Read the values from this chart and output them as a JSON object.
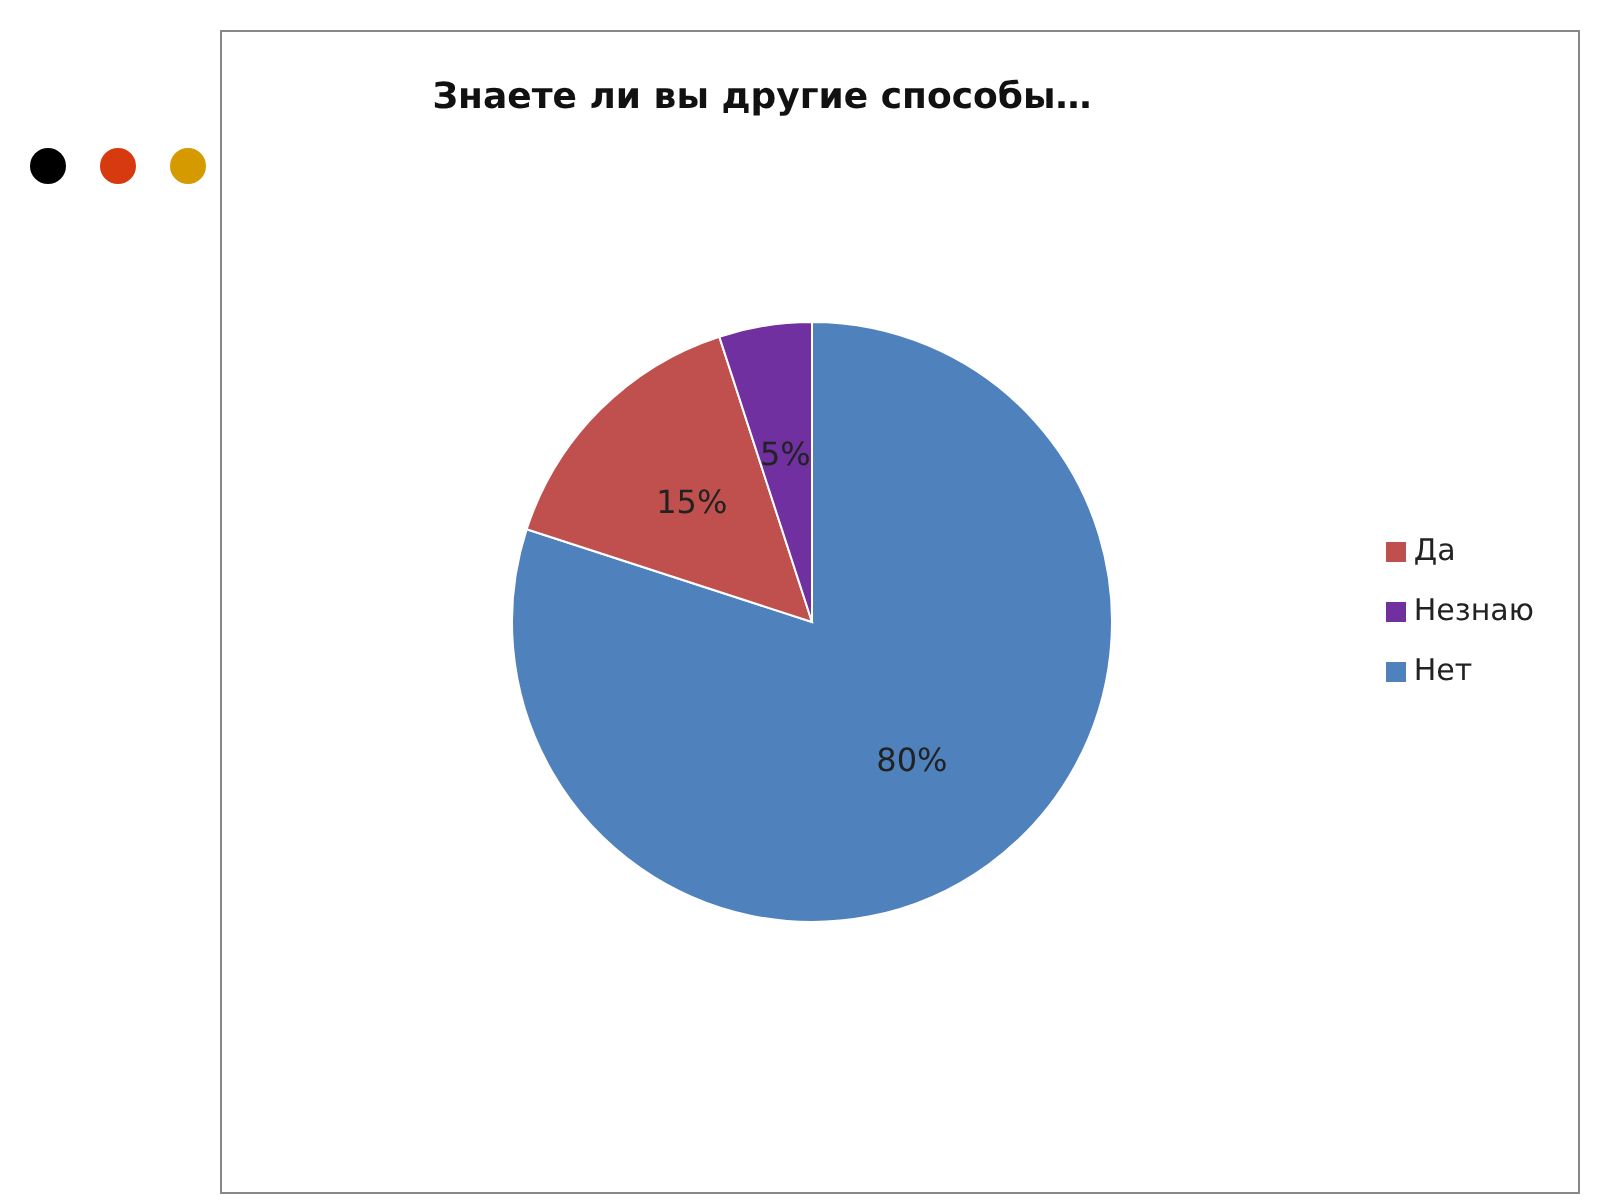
{
  "chart_data": {
    "type": "pie",
    "title": "Знаете ли вы другие способы…",
    "categories": [
      "Нет",
      "Да",
      "Незнаю"
    ],
    "values": [
      80,
      15,
      5
    ],
    "colors": [
      "#4f81bd",
      "#c0504d",
      "#7030a0"
    ],
    "value_labels": [
      "80%",
      "15%",
      "5%"
    ],
    "legend": "right"
  }
}
